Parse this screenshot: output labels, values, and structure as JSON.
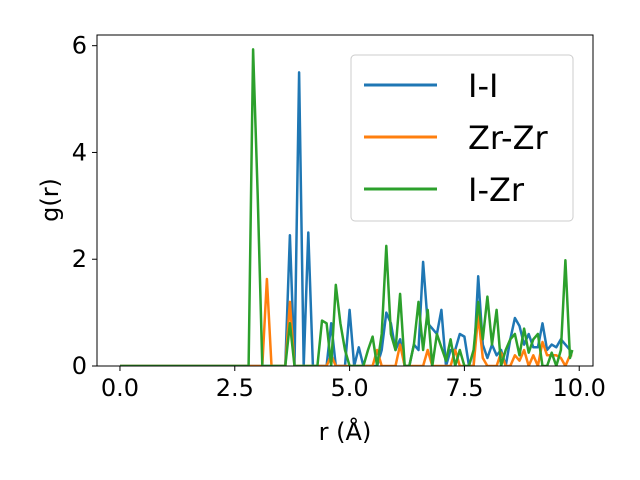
{
  "chart_data": {
    "type": "line",
    "xlabel": "r (Å)",
    "ylabel": "g(r)",
    "xlim": [
      -0.5,
      10.3
    ],
    "ylim": [
      0,
      6.2
    ],
    "xticks": [
      "0.0",
      "2.5",
      "5.0",
      "7.5",
      "10.0"
    ],
    "xtick_values": [
      0,
      2.5,
      5.0,
      7.5,
      10.0
    ],
    "yticks": [
      "0",
      "2",
      "4",
      "6"
    ],
    "ytick_values": [
      0,
      2,
      4,
      6
    ],
    "grid": false,
    "legend_position": "top-right",
    "series": [
      {
        "name": "I-I",
        "color": "#1f77b4",
        "points": [
          [
            0,
            0
          ],
          [
            2.5,
            0
          ],
          [
            3.6,
            0
          ],
          [
            3.7,
            2.45
          ],
          [
            3.8,
            0
          ],
          [
            3.9,
            5.5
          ],
          [
            4.0,
            0
          ],
          [
            4.1,
            2.5
          ],
          [
            4.2,
            0
          ],
          [
            4.5,
            0
          ],
          [
            4.6,
            0.8
          ],
          [
            4.7,
            0
          ],
          [
            4.9,
            0
          ],
          [
            5.0,
            1.05
          ],
          [
            5.1,
            0
          ],
          [
            5.2,
            0.35
          ],
          [
            5.3,
            0
          ],
          [
            5.6,
            0
          ],
          [
            5.7,
            0.3
          ],
          [
            5.8,
            1.0
          ],
          [
            5.9,
            0.8
          ],
          [
            6.0,
            0.3
          ],
          [
            6.1,
            0.5
          ],
          [
            6.2,
            0
          ],
          [
            6.3,
            0
          ],
          [
            6.4,
            0.4
          ],
          [
            6.5,
            0.3
          ],
          [
            6.6,
            1.95
          ],
          [
            6.7,
            0.8
          ],
          [
            6.8,
            0.7
          ],
          [
            6.9,
            0.6
          ],
          [
            7.0,
            1.05
          ],
          [
            7.1,
            0
          ],
          [
            7.2,
            0.3
          ],
          [
            7.3,
            0.3
          ],
          [
            7.4,
            0.6
          ],
          [
            7.5,
            0.55
          ],
          [
            7.6,
            0
          ],
          [
            7.7,
            0
          ],
          [
            7.8,
            1.68
          ],
          [
            7.9,
            0.4
          ],
          [
            8.0,
            0.15
          ],
          [
            8.1,
            0.4
          ],
          [
            8.2,
            0.2
          ],
          [
            8.3,
            0.3
          ],
          [
            8.4,
            0
          ],
          [
            8.5,
            0.5
          ],
          [
            8.6,
            0.9
          ],
          [
            8.7,
            0.75
          ],
          [
            8.8,
            0.4
          ],
          [
            8.9,
            0.6
          ],
          [
            9.0,
            0.35
          ],
          [
            9.1,
            0.35
          ],
          [
            9.2,
            0.8
          ],
          [
            9.3,
            0.3
          ],
          [
            9.4,
            0.4
          ],
          [
            9.5,
            0.35
          ],
          [
            9.6,
            0.5
          ],
          [
            9.7,
            0.4
          ],
          [
            9.8,
            0.3
          ]
        ]
      },
      {
        "name": "Zr-Zr",
        "color": "#ff7f0e",
        "points": [
          [
            0,
            0
          ],
          [
            3.0,
            0
          ],
          [
            3.1,
            0
          ],
          [
            3.2,
            1.63
          ],
          [
            3.3,
            0
          ],
          [
            3.6,
            0
          ],
          [
            3.7,
            1.2
          ],
          [
            3.8,
            0
          ],
          [
            4.5,
            0
          ],
          [
            4.6,
            0.2
          ],
          [
            4.7,
            0
          ],
          [
            5.5,
            0
          ],
          [
            5.6,
            0.3
          ],
          [
            5.7,
            0
          ],
          [
            6.0,
            0
          ],
          [
            6.1,
            0.4
          ],
          [
            6.2,
            0
          ],
          [
            6.6,
            0
          ],
          [
            6.7,
            0.3
          ],
          [
            6.8,
            0
          ],
          [
            7.2,
            0
          ],
          [
            7.3,
            0.3
          ],
          [
            7.4,
            0
          ],
          [
            7.7,
            0
          ],
          [
            7.8,
            0.95
          ],
          [
            7.9,
            0.15
          ],
          [
            8.0,
            0
          ],
          [
            8.2,
            0
          ],
          [
            8.3,
            0.25
          ],
          [
            8.4,
            0
          ],
          [
            8.5,
            0
          ],
          [
            8.6,
            0.2
          ],
          [
            8.7,
            0.1
          ],
          [
            8.8,
            0.3
          ],
          [
            8.9,
            0
          ],
          [
            9.0,
            0.2
          ],
          [
            9.1,
            0
          ],
          [
            9.2,
            0.45
          ],
          [
            9.3,
            0.2
          ],
          [
            9.4,
            0.2
          ],
          [
            9.5,
            0.2
          ],
          [
            9.6,
            0.15
          ],
          [
            9.7,
            0
          ],
          [
            9.8,
            0.2
          ],
          [
            9.85,
            0.2
          ]
        ]
      },
      {
        "name": "I-Zr",
        "color": "#2ca02c",
        "points": [
          [
            0,
            0
          ],
          [
            2.8,
            0
          ],
          [
            2.9,
            5.93
          ],
          [
            3.0,
            3.2
          ],
          [
            3.1,
            0
          ],
          [
            3.6,
            0
          ],
          [
            3.7,
            0.8
          ],
          [
            3.8,
            0
          ],
          [
            4.3,
            0
          ],
          [
            4.4,
            0.85
          ],
          [
            4.5,
            0.8
          ],
          [
            4.6,
            0
          ],
          [
            4.7,
            1.52
          ],
          [
            4.8,
            0.8
          ],
          [
            4.9,
            0.3
          ],
          [
            5.0,
            0
          ],
          [
            5.3,
            0
          ],
          [
            5.4,
            0.3
          ],
          [
            5.5,
            0.55
          ],
          [
            5.6,
            0
          ],
          [
            5.7,
            0.6
          ],
          [
            5.8,
            2.25
          ],
          [
            5.9,
            0.6
          ],
          [
            6.0,
            0.3
          ],
          [
            6.1,
            1.35
          ],
          [
            6.2,
            0
          ],
          [
            6.3,
            0
          ],
          [
            6.4,
            0.4
          ],
          [
            6.5,
            1.2
          ],
          [
            6.6,
            0.3
          ],
          [
            6.7,
            1.05
          ],
          [
            6.8,
            0
          ],
          [
            6.9,
            0.6
          ],
          [
            7.0,
            0.35
          ],
          [
            7.1,
            0.1
          ],
          [
            7.2,
            0.5
          ],
          [
            7.3,
            0
          ],
          [
            7.4,
            0.3
          ],
          [
            7.5,
            0
          ],
          [
            7.6,
            0
          ],
          [
            7.7,
            0.3
          ],
          [
            7.8,
            1.2
          ],
          [
            7.9,
            0.5
          ],
          [
            8.0,
            1.3
          ],
          [
            8.1,
            0.4
          ],
          [
            8.2,
            1.05
          ],
          [
            8.3,
            0
          ],
          [
            8.4,
            0.3
          ],
          [
            8.5,
            0.5
          ],
          [
            8.6,
            0.6
          ],
          [
            8.7,
            0.2
          ],
          [
            8.8,
            0.7
          ],
          [
            8.9,
            0.25
          ],
          [
            9.0,
            0.5
          ],
          [
            9.1,
            0.6
          ],
          [
            9.2,
            0
          ],
          [
            9.3,
            0
          ],
          [
            9.4,
            0.25
          ],
          [
            9.5,
            0
          ],
          [
            9.6,
            0.3
          ],
          [
            9.7,
            1.98
          ],
          [
            9.8,
            0.15
          ],
          [
            9.85,
            0.3
          ]
        ]
      }
    ]
  }
}
